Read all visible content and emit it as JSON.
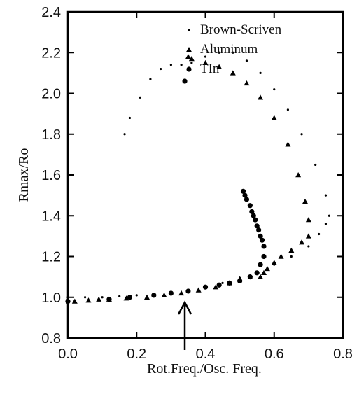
{
  "chart_data": {
    "type": "scatter",
    "xlabel": "Rot.Freq./Osc. Freq.",
    "ylabel": "Rmax/Ro",
    "xlim": [
      0.0,
      0.8
    ],
    "ylim": [
      0.8,
      2.4
    ],
    "xticks": [
      "0.0",
      "0.2",
      "0.4",
      "0.6",
      "0.8"
    ],
    "yticks": [
      "0.8",
      "1.0",
      "1.2",
      "1.4",
      "1.6",
      "1.8",
      "2.0",
      "2.2",
      "2.4"
    ],
    "grid": false,
    "legend_position": "top-right",
    "annotation": {
      "type": "arrow",
      "x": 0.34
    },
    "series": [
      {
        "name": "Brown-Scriven",
        "marker": "dot",
        "x": [
          0.0,
          0.05,
          0.1,
          0.15,
          0.2,
          0.25,
          0.3,
          0.35,
          0.4,
          0.45,
          0.5,
          0.55,
          0.6,
          0.65,
          0.7,
          0.73,
          0.75,
          0.76,
          0.75,
          0.72,
          0.68,
          0.64,
          0.6,
          0.56,
          0.52,
          0.48,
          0.44,
          0.4,
          0.36,
          0.33,
          0.3,
          0.27,
          0.24,
          0.21,
          0.18,
          0.165
        ],
        "y": [
          1.0,
          1.0,
          1.0,
          1.005,
          1.01,
          1.015,
          1.025,
          1.035,
          1.05,
          1.07,
          1.095,
          1.125,
          1.16,
          1.2,
          1.25,
          1.31,
          1.36,
          1.4,
          1.5,
          1.65,
          1.8,
          1.92,
          2.02,
          2.1,
          2.16,
          2.2,
          2.2,
          2.18,
          2.15,
          2.14,
          2.14,
          2.12,
          2.07,
          1.98,
          1.88,
          1.8
        ]
      },
      {
        "name": "Aluminum",
        "marker": "triangle",
        "x": [
          0.02,
          0.06,
          0.09,
          0.12,
          0.17,
          0.23,
          0.28,
          0.33,
          0.38,
          0.43,
          0.47,
          0.5,
          0.53,
          0.56,
          0.57,
          0.58,
          0.6,
          0.62,
          0.65,
          0.68,
          0.7,
          0.7,
          0.69,
          0.67,
          0.64,
          0.6,
          0.56,
          0.52,
          0.48,
          0.44,
          0.4,
          0.36,
          0.35
        ],
        "y": [
          0.98,
          0.985,
          0.99,
          0.99,
          0.995,
          1.0,
          1.01,
          1.02,
          1.035,
          1.05,
          1.07,
          1.09,
          1.1,
          1.1,
          1.12,
          1.14,
          1.17,
          1.2,
          1.23,
          1.27,
          1.3,
          1.38,
          1.47,
          1.6,
          1.75,
          1.88,
          1.98,
          2.05,
          2.1,
          2.13,
          2.15,
          2.17,
          2.18
        ]
      },
      {
        "name": "TIn",
        "marker": "circle",
        "x": [
          0.0,
          0.12,
          0.18,
          0.25,
          0.3,
          0.35,
          0.4,
          0.44,
          0.47,
          0.5,
          0.53,
          0.55,
          0.56,
          0.57,
          0.57,
          0.565,
          0.56,
          0.555,
          0.55,
          0.545,
          0.54,
          0.535,
          0.53,
          0.52,
          0.515,
          0.51,
          0.34
        ],
        "y": [
          0.98,
          0.99,
          1.0,
          1.01,
          1.02,
          1.03,
          1.05,
          1.06,
          1.07,
          1.08,
          1.1,
          1.12,
          1.16,
          1.2,
          1.25,
          1.28,
          1.3,
          1.33,
          1.35,
          1.38,
          1.4,
          1.42,
          1.45,
          1.48,
          1.5,
          1.52,
          2.06
        ]
      }
    ]
  }
}
